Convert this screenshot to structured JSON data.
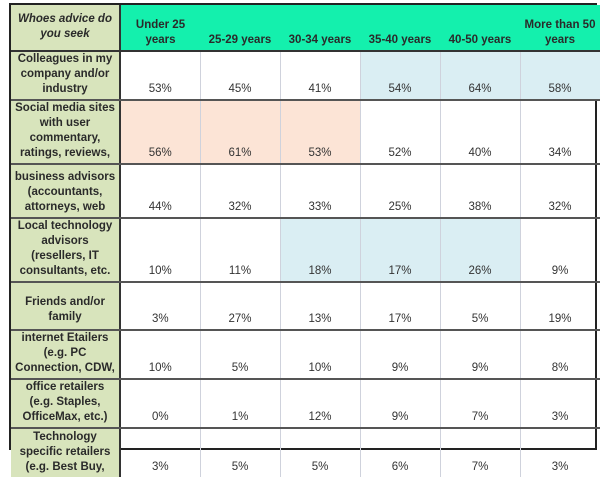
{
  "table": {
    "corner_label": "Whoes advice do you seek",
    "columns": [
      "Under 25 years",
      "25-29 years",
      "30-34 years",
      "35-40 years",
      "40-50 years",
      "More than 50 years"
    ],
    "rows": [
      {
        "label": "Colleagues in my company and/or industry",
        "values": [
          "53%",
          "45%",
          "41%",
          "54%",
          "64%",
          "58%"
        ],
        "highlight": "blue:35-40 years,40-50 years,More than 50 years"
      },
      {
        "label": "Social media sites with user commentary, ratings, reviews,",
        "values": [
          "56%",
          "61%",
          "53%",
          "52%",
          "40%",
          "34%"
        ],
        "highlight": "peach:Under 25 years,25-29 years,30-34 years"
      },
      {
        "label": "business advisors (accountants, attorneys, web",
        "values": [
          "44%",
          "32%",
          "33%",
          "25%",
          "38%",
          "32%"
        ]
      },
      {
        "label": "Local technology advisors (resellers, IT consultants, etc.",
        "values": [
          "10%",
          "11%",
          "18%",
          "17%",
          "26%",
          "9%"
        ],
        "highlight": "blue:30-34 years,35-40 years,40-50 years"
      },
      {
        "label": "Friends and/or family",
        "values": [
          "3%",
          "27%",
          "13%",
          "17%",
          "5%",
          "19%"
        ]
      },
      {
        "label": "internet Etailers (e.g. PC Connection, CDW,",
        "values": [
          "10%",
          "5%",
          "10%",
          "9%",
          "9%",
          "8%"
        ]
      },
      {
        "label": "office retailers (e.g. Staples, OfficeMax, etc.)",
        "values": [
          "0%",
          "1%",
          "12%",
          "9%",
          "7%",
          "3%"
        ]
      },
      {
        "label": "Technology specific retailers (e.g. Best Buy,",
        "values": [
          "3%",
          "5%",
          "5%",
          "6%",
          "7%",
          "3%"
        ]
      }
    ]
  },
  "colors": {
    "header_bg": "#14f0ad",
    "label_bg": "#d8e4bc",
    "highlight_peach": "#fce4d6",
    "highlight_blue": "#daeef3"
  }
}
